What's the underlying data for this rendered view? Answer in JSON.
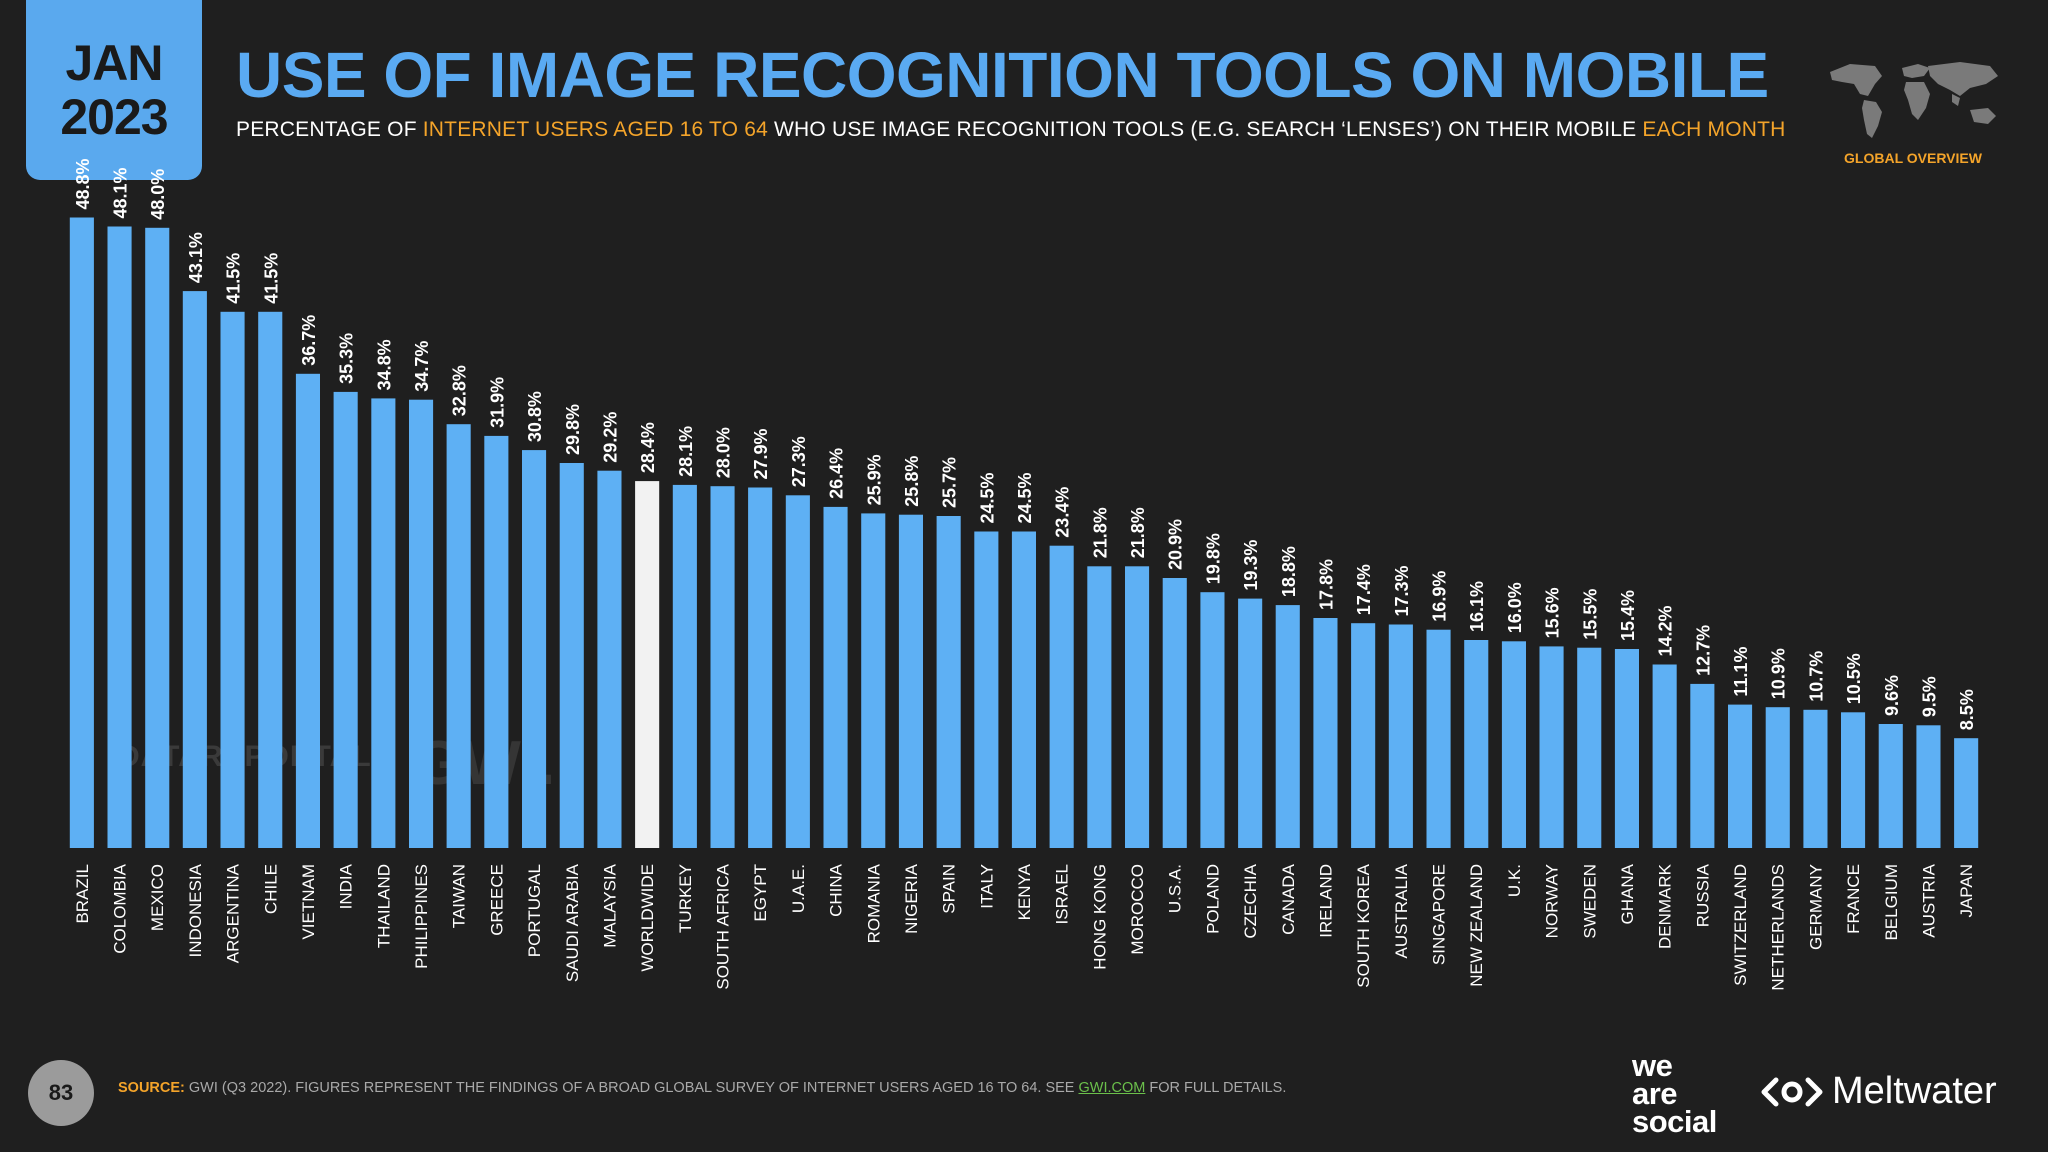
{
  "header": {
    "date_month": "JAN",
    "date_year": "2023",
    "title": "USE OF IMAGE RECOGNITION TOOLS ON MOBILE",
    "subtitle_part1": "PERCENTAGE OF ",
    "subtitle_highlight1": "INTERNET USERS AGED 16 TO 64",
    "subtitle_part2": " WHO USE IMAGE RECOGNITION TOOLS (E.G. SEARCH ‘LENSES’) ON THEIR MOBILE ",
    "subtitle_highlight2": "EACH MONTH",
    "global_overview": "GLOBAL OVERVIEW",
    "map_icon": "world-map-icon"
  },
  "watermarks": {
    "datareportal": "DATAREPORTAL",
    "gwi": "GWI."
  },
  "footer": {
    "page_number": "83",
    "source_label": "SOURCE:",
    "source_text": " GWI (Q3 2022). FIGURES REPRESENT THE FINDINGS OF A BROAD GLOBAL SURVEY OF INTERNET USERS AGED 16 TO 64. SEE ",
    "source_link": "GWI.COM",
    "source_tail": " FOR FULL DETAILS.",
    "brand1_line1": "we",
    "brand1_line2": "are",
    "brand1_line3": "social",
    "brand2": "Meltwater"
  },
  "colors": {
    "background": "#1f1f1f",
    "bar": "#5eb0f4",
    "highlight_bar": "#f2f2f2",
    "accent_orange": "#f4a42a",
    "title_blue": "#5aaaf2"
  },
  "chart_data": {
    "type": "bar",
    "highlight": "WORLDWIDE",
    "value_suffix": "%",
    "ylim": [
      0,
      50
    ],
    "grid": false,
    "categories": [
      "BRAZIL",
      "COLOMBIA",
      "MEXICO",
      "INDONESIA",
      "ARGENTINA",
      "CHILE",
      "VIETNAM",
      "INDIA",
      "THAILAND",
      "PHILIPPINES",
      "TAIWAN",
      "GREECE",
      "PORTUGAL",
      "SAUDI ARABIA",
      "MALAYSIA",
      "WORLDWIDE",
      "TURKEY",
      "SOUTH AFRICA",
      "EGYPT",
      "U.A.E.",
      "CHINA",
      "ROMANIA",
      "NIGERIA",
      "SPAIN",
      "ITALY",
      "KENYA",
      "ISRAEL",
      "HONG KONG",
      "MOROCCO",
      "U.S.A.",
      "POLAND",
      "CZECHIA",
      "CANADA",
      "IRELAND",
      "SOUTH KOREA",
      "AUSTRALIA",
      "SINGAPORE",
      "NEW ZEALAND",
      "U.K.",
      "NORWAY",
      "SWEDEN",
      "GHANA",
      "DENMARK",
      "RUSSIA",
      "SWITZERLAND",
      "NETHERLANDS",
      "GERMANY",
      "FRANCE",
      "BELGIUM",
      "AUSTRIA",
      "JAPAN"
    ],
    "values": [
      48.8,
      48.1,
      48.0,
      43.1,
      41.5,
      41.5,
      36.7,
      35.3,
      34.8,
      34.7,
      32.8,
      31.9,
      30.8,
      29.8,
      29.2,
      28.4,
      28.1,
      28.0,
      27.9,
      27.3,
      26.4,
      25.9,
      25.8,
      25.7,
      24.5,
      24.5,
      23.4,
      21.8,
      21.8,
      20.9,
      19.8,
      19.3,
      18.8,
      17.8,
      17.4,
      17.3,
      16.9,
      16.1,
      16.0,
      15.6,
      15.5,
      15.4,
      14.2,
      12.7,
      11.1,
      10.9,
      10.7,
      10.5,
      9.6,
      9.5,
      8.5
    ]
  }
}
